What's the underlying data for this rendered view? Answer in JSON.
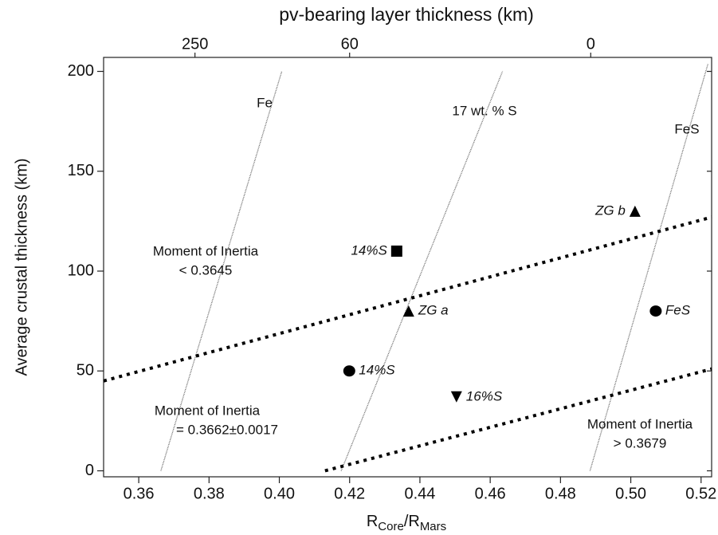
{
  "chart_data": {
    "type": "scatter",
    "xlabel": [
      "R",
      "Core",
      "/R",
      "Mars"
    ],
    "ylabel": "Average crustal thickness (km)",
    "x2label": "pv-bearing layer thickness (km)",
    "xlim": [
      0.35,
      0.523
    ],
    "ylim": [
      -3,
      207
    ],
    "xticks": [
      0.36,
      0.38,
      {
        "value": 0.4,
        "label": "0.40"
      },
      0.42,
      0.44,
      0.46,
      0.48,
      {
        "value": 0.5,
        "label": "0.50"
      },
      0.52
    ],
    "yticks": [
      0,
      50,
      100,
      150,
      200
    ],
    "x2ticks": [
      {
        "value": 250,
        "x": 0.376
      },
      {
        "value": 60,
        "x": 0.42
      },
      {
        "value": 0,
        "x": 0.4886
      }
    ],
    "lines": [
      {
        "name": "Fe",
        "x": [
          0.3663,
          0.4007
        ],
        "y": [
          0,
          200
        ]
      },
      {
        "name": "17 wt. % S",
        "x": [
          0.4176,
          0.4635
        ],
        "y": [
          0,
          200
        ]
      },
      {
        "name": "FeS",
        "x": [
          0.4884,
          0.522
        ],
        "y": [
          0,
          204
        ]
      }
    ],
    "moi_lines": [
      {
        "x": [
          0.35,
          0.523
        ],
        "y": [
          45,
          127
        ]
      },
      {
        "x": [
          0.413,
          0.523
        ],
        "y": [
          0,
          51
        ]
      }
    ],
    "annotations": [
      [
        "Moment of Inertia",
        "< 0.3645"
      ],
      [
        "Moment of Inertia",
        "= 0.3662±0.0017"
      ],
      [
        "Moment of Inertia",
        "> 0.3679"
      ]
    ],
    "points": [
      {
        "label": "14%S",
        "marker": "square",
        "x": 0.4334,
        "y": 110
      },
      {
        "label": "ZG a",
        "marker": "triangle",
        "x": 0.4368,
        "y": 80
      },
      {
        "label": "14%S",
        "marker": "circle",
        "x": 0.4199,
        "y": 50
      },
      {
        "label": "16%S",
        "marker": "triangle-down",
        "x": 0.4504,
        "y": 37
      },
      {
        "label": "ZG b",
        "marker": "triangle",
        "x": 0.5012,
        "y": 130
      },
      {
        "label": "FeS",
        "marker": "circle",
        "x": 0.5071,
        "y": 80
      }
    ]
  }
}
